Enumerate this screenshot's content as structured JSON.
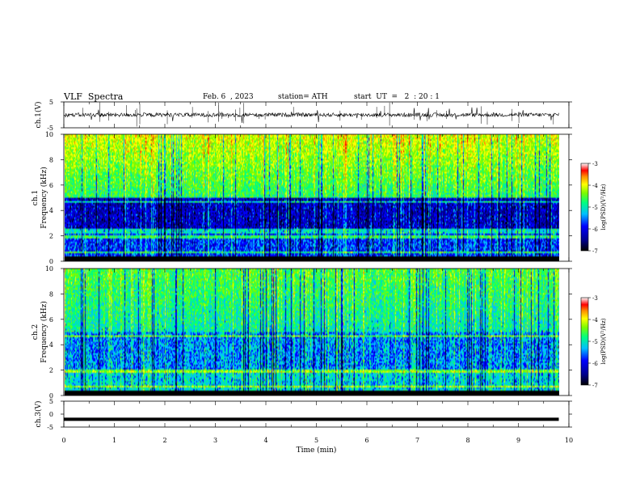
{
  "header": {
    "title": "VLF  Spectra",
    "date": "Feb. 6  , 2023",
    "station": "station= ATH",
    "start": "start  UT  =   2  : 20 : 1"
  },
  "colors": {
    "axis": "#000000",
    "trace": "#000000",
    "colormap": [
      "#000000",
      "#00008b",
      "#0000ff",
      "#00bfff",
      "#00ff7f",
      "#7cfc00",
      "#ffff00",
      "#ff8c00",
      "#ff0000",
      "#ffffff"
    ]
  },
  "chart_data": [
    {
      "type": "line",
      "ylabel": "ch.1(V)",
      "ylim": [
        -5,
        5
      ],
      "yticks": [
        "5",
        "-5"
      ],
      "xlim": [
        0,
        10
      ],
      "description_values": {
        "baseline": 0,
        "noise_amplitude": 1.5
      }
    },
    {
      "type": "heatmap",
      "ylabel_lines": [
        "ch.1",
        "Frequency  (kHz)"
      ],
      "ylim": [
        0,
        10
      ],
      "yticks": [
        "0",
        "2",
        "4",
        "6",
        "8",
        "10"
      ],
      "xlim": [
        0,
        10
      ],
      "colorbar": {
        "label": "log(PSD)(V²/Hz)",
        "range": [
          -7,
          -3
        ],
        "ticks": [
          "-3",
          "-4",
          "-5",
          "-6",
          "-7"
        ]
      }
    },
    {
      "type": "heatmap",
      "ylabel_lines": [
        "ch.2",
        "Frequency  (kHz)"
      ],
      "ylim": [
        0,
        10
      ],
      "yticks": [
        "0",
        "2",
        "4",
        "6",
        "8",
        "10"
      ],
      "xlim": [
        0,
        10
      ],
      "colorbar": {
        "label": "log(PSD)(V²/Hz)",
        "range": [
          -7,
          -3
        ],
        "ticks": [
          "-3",
          "-4",
          "-5",
          "-6",
          "-7"
        ]
      }
    },
    {
      "type": "line",
      "ylabel": "ch.3(V)",
      "ylim": [
        -5,
        5
      ],
      "yticks": [
        "5",
        "0",
        "-5"
      ],
      "xlim": [
        0,
        10
      ],
      "xticks": [
        "0",
        "1",
        "2",
        "3",
        "4",
        "5",
        "6",
        "7",
        "8",
        "9",
        "10"
      ],
      "xlabel": "Time  (min)",
      "description_values": {
        "constant_level": -2
      }
    }
  ]
}
